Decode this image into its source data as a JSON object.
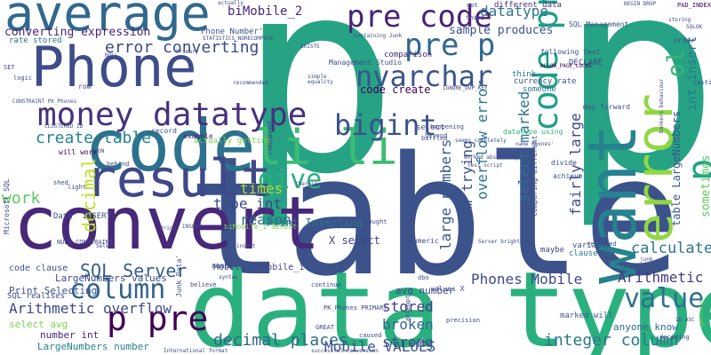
{
  "background": "#ffffff",
  "words": [
    {
      "text": "p p",
      "color": "#26a384"
    },
    {
      "text": "table",
      "color": "#3b528b"
    },
    {
      "text": "data type",
      "color": "#2ab07f"
    },
    {
      "text": "convert",
      "color": "#482878"
    },
    {
      "text": "code",
      "color": "#2c728e"
    },
    {
      "text": "Phone",
      "color": "#3e4c8a"
    },
    {
      "text": "average",
      "color": "#31688e"
    },
    {
      "text": "want",
      "color": "#26828e"
    },
    {
      "text": "result",
      "color": "#3f4889"
    },
    {
      "text": "li li",
      "color": "#3dbc74"
    },
    {
      "text": "error",
      "color": "#90d743"
    },
    {
      "text": "p",
      "color": "#20a386"
    },
    {
      "text": "money datatype",
      "color": "#46327e"
    },
    {
      "text": "pre code",
      "color": "#482475"
    },
    {
      "text": "pre p",
      "color": "#31688e"
    },
    {
      "text": "code pre",
      "color": "#1f9e89"
    },
    {
      "text": "nvarchar",
      "color": "#39568c"
    },
    {
      "text": "bigint",
      "color": "#3b528b"
    },
    {
      "text": "give",
      "color": "#2ab07f"
    },
    {
      "text": "column",
      "color": "#33638d"
    },
    {
      "text": "p pre",
      "color": "#440154"
    },
    {
      "text": "value",
      "color": "#2d708e"
    },
    {
      "text": "ol",
      "color": "#35b779"
    },
    {
      "text": "error converting",
      "color": "#3e4989"
    },
    {
      "text": "datatype",
      "color": "#2c728e"
    },
    {
      "text": "create table",
      "color": "#26828e"
    },
    {
      "text": "work",
      "color": "#5ec962"
    },
    {
      "text": "decimal",
      "color": "#bddf26"
    },
    {
      "text": "times",
      "color": "#addc30"
    },
    {
      "text": "type int",
      "color": "#3f4788"
    },
    {
      "text": "reason",
      "color": "#2c728e"
    },
    {
      "text": "SQL Server",
      "color": "#355f8d"
    },
    {
      "text": "Arithmetic overflow",
      "color": "#3e4989"
    },
    {
      "text": "decimal places",
      "color": "#31688e"
    },
    {
      "text": "Mobile VALUES",
      "color": "#3a548c"
    },
    {
      "text": "integer column",
      "color": "#2a788e"
    },
    {
      "text": "calculate",
      "color": "#2a768e"
    },
    {
      "text": "Arithmetic",
      "color": "#453781"
    },
    {
      "text": "Phones Mobile",
      "color": "#3e4a89"
    },
    {
      "text": "stored",
      "color": "#443983"
    },
    {
      "text": "broken",
      "color": "#31688e"
    },
    {
      "text": "strong",
      "color": "#3b528b"
    },
    {
      "text": "Im trying",
      "color": "#3b528b"
    },
    {
      "text": "overflow error",
      "color": "#2a788e"
    },
    {
      "text": "select marked",
      "color": "#2d708e"
    },
    {
      "text": "large numbers",
      "color": "#38598c"
    },
    {
      "text": "fairly large",
      "color": "#3e4a89"
    },
    {
      "text": "int insert",
      "color": "#2a788e"
    },
    {
      "text": "sometimes",
      "color": "#5ec962"
    },
    {
      "text": "table LargeNumbers",
      "color": "#38598c"
    },
    {
      "text": "biMobile_2",
      "color": "#482878"
    },
    {
      "text": "converting expression",
      "color": "#482475"
    },
    {
      "text": "sample produces",
      "color": "#3b528b"
    },
    {
      "text": "code create",
      "color": "#440154"
    },
    {
      "text": "Phone Number'",
      "color": "#3b528b"
    },
    {
      "text": "Print Inserting",
      "color": "#2c728e"
    },
    {
      "text": "X select",
      "color": "#404688"
    },
    {
      "text": "Mobile biMobile_1",
      "color": "#414487"
    },
    {
      "text": "LargeNumbers values",
      "color": "#3e4a89"
    },
    {
      "text": "avg number",
      "color": "#3e4a89"
    },
    {
      "text": "anyone know",
      "color": "#2e6e8e"
    },
    {
      "text": "marked will",
      "color": "#39568c"
    },
    {
      "text": "clause li",
      "color": "#2c728e"
    },
    {
      "text": "variable",
      "color": "#3b528b"
    },
    {
      "text": "maybe",
      "color": "#3f4788"
    },
    {
      "text": "number int",
      "color": "#482878"
    },
    {
      "text": "LargeNumbers number",
      "color": "#26828e"
    },
    {
      "text": "select avg",
      "color": "#7ad151"
    },
    {
      "text": "Print Selecting",
      "color": "#3b528b"
    },
    {
      "text": "code clause",
      "color": "#3b528b"
    },
    {
      "text": "rate stored",
      "color": "#2c728e"
    },
    {
      "text": "different data",
      "color": "#472d7b"
    },
    {
      "text": "comparison",
      "color": "#482878"
    },
    {
      "text": "currency rate",
      "color": "#3b528b"
    },
    {
      "text": "Management Studio",
      "color": "#3b528b"
    },
    {
      "text": "SQL Management",
      "color": "#3b528b"
    },
    {
      "text": "DECLARE",
      "color": "#3f4788"
    },
    {
      "text": "order",
      "color": "#3e4a89"
    },
    {
      "text": "think",
      "color": "#2c728e"
    },
    {
      "text": "someone",
      "color": "#2c728e"
    },
    {
      "text": "may forward",
      "color": "#3b528b"
    },
    {
      "text": "following text",
      "color": "#3b528b"
    },
    {
      "text": "ALLOW_PAGE_LOCKS",
      "color": "#440154"
    },
    {
      "text": "IGNORE_DUP_KEY",
      "color": "#453781"
    },
    {
      "text": "PAD_INDEX",
      "color": "#440154"
    },
    {
      "text": "BEGIN DROP",
      "color": "#3e4a89"
    },
    {
      "text": "datatype using",
      "color": "#35b779"
    },
    {
      "text": "name Phones'",
      "color": "#3b528b"
    },
    {
      "text": "seems completely",
      "color": "#3b528b"
    },
    {
      "text": "worked absolutely",
      "color": "#3e4a89"
    },
    {
      "text": "test script",
      "color": "#3b528b"
    },
    {
      "text": "Server bright",
      "color": "#3e4a89"
    },
    {
      "text": "comparing different",
      "color": "#3e4a89"
    },
    {
      "text": "divide",
      "color": "#3e4989"
    },
    {
      "text": "achieve",
      "color": "#3b528b"
    },
    {
      "text": "actually getting",
      "color": "#7ad151"
    },
    {
      "text": "example",
      "color": "#482475"
    },
    {
      "text": "record",
      "color": "#3b528b"
    },
    {
      "text": "compared",
      "color": "#3e4a89"
    },
    {
      "text": "select",
      "color": "#3b528b"
    },
    {
      "text": "happening",
      "color": "#3e4a89"
    },
    {
      "text": "baffled",
      "color": "#3e4a89"
    },
    {
      "text": "beyond",
      "color": "#3b528b"
    },
    {
      "text": "will work",
      "color": "#440154"
    },
    {
      "text": "Data' INSERT",
      "color": "#3b528b"
    },
    {
      "text": "NULL CONSTRAINT",
      "color": "#3e4a89"
    },
    {
      "text": "Junk Data'",
      "color": "#3b528b"
    },
    {
      "text": "biMobile_1 Select",
      "color": "#7ad151"
    },
    {
      "text": "numeric",
      "color": "#3e4a89"
    },
    {
      "text": "returned",
      "color": "#3b528b"
    },
    {
      "text": "believe",
      "color": "#3e4a89"
    },
    {
      "text": "continue",
      "color": "#3e4a89"
    },
    {
      "text": "PK_Phones PRIMARY",
      "color": "#3e4a89"
    },
    {
      "text": "values X",
      "color": "#3e4a89"
    },
    {
      "text": "dbo",
      "color": "#3b528b"
    },
    {
      "text": "GREAT",
      "color": "#3e4a89"
    },
    {
      "text": "International format",
      "color": "#3e4a89"
    },
    {
      "text": "successful conversion",
      "color": "#3e4a89"
    },
    {
      "text": "caused",
      "color": "#3e4a89"
    },
    {
      "text": "attempt",
      "color": "#3e4a89"
    },
    {
      "text": "SQL realises",
      "color": "#3e4a89"
    },
    {
      "text": "Microsoft SQL",
      "color": "#3e4a89"
    },
    {
      "text": "CONSTRAINT PK_Phones",
      "color": "#3b528b"
    },
    {
      "text": "STATISTICS_NORECOMPUTE",
      "color": "#3e4a89"
    },
    {
      "text": "number",
      "color": "#3e4a89"
    },
    {
      "text": "one",
      "color": "#3e4a89"
    },
    {
      "text": "row",
      "color": "#3e4a89"
    },
    {
      "text": "behind",
      "color": "#3e4a89"
    },
    {
      "text": "bankers behaviour",
      "color": "#3e4a89"
    },
    {
      "text": "casting",
      "color": "#3e4a89"
    },
    {
      "text": "storing",
      "color": "#3e4a89"
    },
    {
      "text": "ID ASC",
      "color": "#3e4a89"
    },
    {
      "text": "deciding",
      "color": "#3e4a89"
    },
    {
      "text": "getting",
      "color": "#7ad151"
    },
    {
      "text": "junk",
      "color": "#3e4a89"
    },
    {
      "text": "SQLOK",
      "color": "#3e4a89"
    },
    {
      "text": "got",
      "color": "#3e4a89"
    },
    {
      "text": "third",
      "color": "#3e4a89"
    },
    {
      "text": "actually",
      "color": "#3e4a89"
    },
    {
      "text": "recommended",
      "color": "#3e4a89"
    },
    {
      "text": "logic",
      "color": "#3e4a89"
    },
    {
      "text": "SET",
      "color": "#3e4a89"
    },
    {
      "text": "NULL",
      "color": "#3e4a89"
    },
    {
      "text": "EXISTS",
      "color": "#3e4a89"
    },
    {
      "text": "simple",
      "color": "#3e4a89"
    },
    {
      "text": "equality",
      "color": "#3e4a89"
    },
    {
      "text": "Containing Junk",
      "color": "#3e4a89"
    },
    {
      "text": "Primary",
      "color": "#3e4a89"
    },
    {
      "text": "Print",
      "color": "#3e4a89"
    },
    {
      "text": "insert",
      "color": "#3e4a89"
    },
    {
      "text": "precision",
      "color": "#3e4a89"
    },
    {
      "text": "therein",
      "color": "#3e4a89"
    },
    {
      "text": "CLUSTERED ID",
      "color": "#3e4a89"
    },
    {
      "text": "shed",
      "color": "#3e4a89"
    },
    {
      "text": "light",
      "color": "#3e4a89"
    },
    {
      "text": "thought",
      "color": "#3e4a89"
    },
    {
      "text": "INSERT",
      "color": "#3e4a89"
    },
    {
      "text": "Select",
      "color": "#3e4a89"
    },
    {
      "text": "syntax",
      "color": "#3e4a89"
    },
    {
      "text": "ON",
      "color": "#3e4a89"
    }
  ]
}
